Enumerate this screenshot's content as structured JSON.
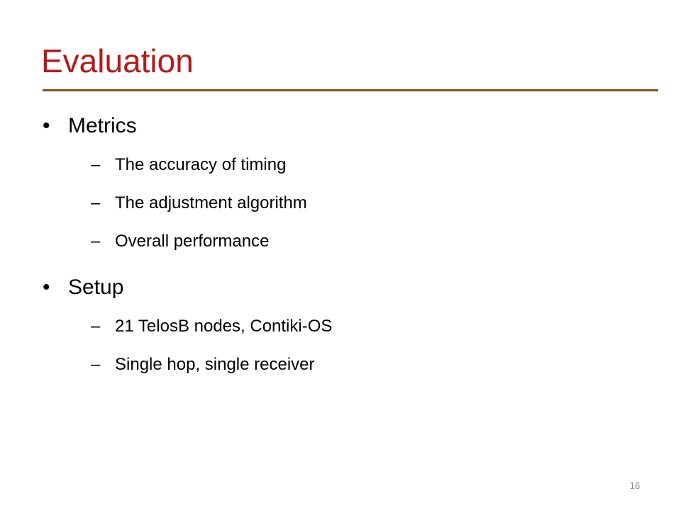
{
  "title": "Evaluation",
  "bullets": [
    {
      "text": "Metrics",
      "items": [
        "The accuracy of timing",
        "The adjustment algorithm",
        "Overall performance"
      ]
    },
    {
      "text": "Setup",
      "items": [
        "21 TelosB nodes, Contiki-OS",
        "Single hop, single receiver"
      ]
    }
  ],
  "page_number": "16"
}
